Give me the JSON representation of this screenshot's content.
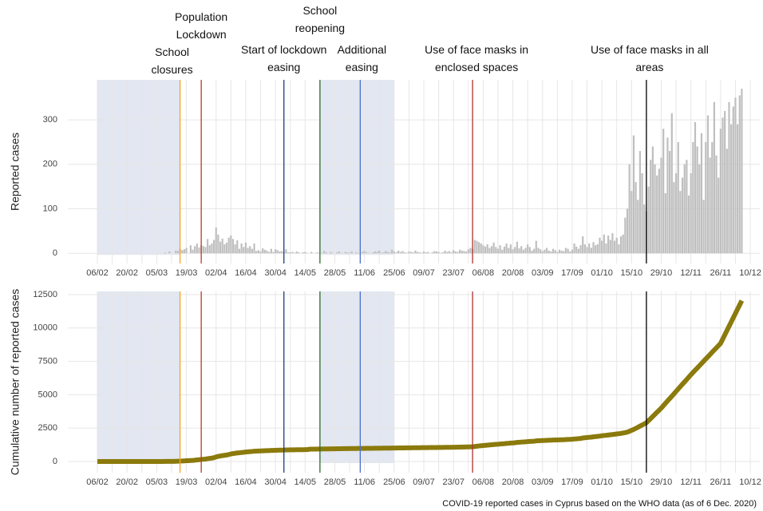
{
  "chart_data": [
    {
      "type": "bar",
      "y_label": "Reported cases",
      "color": "#bfbfbf",
      "grid": true,
      "categories": [
        "06/02",
        null,
        null,
        null,
        null,
        null,
        null,
        null,
        null,
        null,
        null,
        null,
        null,
        null,
        "20/02",
        null,
        null,
        null,
        null,
        null,
        null,
        null,
        null,
        null,
        null,
        null,
        null,
        null,
        "05/03",
        null,
        null,
        null,
        null,
        null,
        null,
        null,
        null,
        null,
        null,
        null,
        null,
        null,
        "19/03",
        null,
        null,
        null,
        null,
        null,
        null,
        null,
        null,
        null,
        null,
        null,
        null,
        null,
        "02/04",
        null,
        null,
        null,
        null,
        null,
        null,
        null,
        null,
        null,
        null,
        null,
        null,
        null,
        "16/04",
        null,
        null,
        null,
        null,
        null,
        null,
        null,
        null,
        null,
        null,
        null,
        null,
        null,
        "30/04",
        null,
        null,
        null,
        null,
        null,
        null,
        null,
        null,
        null,
        null,
        null,
        null,
        null,
        "14/05",
        null,
        null,
        null,
        null,
        null,
        null,
        null,
        null,
        null,
        null,
        null,
        null,
        null,
        "28/05",
        null,
        null,
        null,
        null,
        null,
        null,
        null,
        null,
        null,
        null,
        null,
        null,
        null,
        "11/06",
        null,
        null,
        null,
        null,
        null,
        null,
        null,
        null,
        null,
        null,
        null,
        null,
        null,
        "25/06",
        null,
        null,
        null,
        null,
        null,
        null,
        null,
        null,
        null,
        null,
        null,
        null,
        null,
        "09/07",
        null,
        null,
        null,
        null,
        null,
        null,
        null,
        null,
        null,
        null,
        null,
        null,
        null,
        "23/07",
        null,
        null,
        null,
        null,
        null,
        null,
        null,
        null,
        null,
        null,
        null,
        null,
        null,
        "06/08",
        null,
        null,
        null,
        null,
        null,
        null,
        null,
        null,
        null,
        null,
        null,
        null,
        null,
        "20/08",
        null,
        null,
        null,
        null,
        null,
        null,
        null,
        null,
        null,
        null,
        null,
        null,
        null,
        "03/09",
        null,
        null,
        null,
        null,
        null,
        null,
        null,
        null,
        null,
        null,
        null,
        null,
        null,
        "17/09",
        null,
        null,
        null,
        null,
        null,
        null,
        null,
        null,
        null,
        null,
        null,
        null,
        null,
        "01/10",
        null,
        null,
        null,
        null,
        null,
        null,
        null,
        null,
        null,
        null,
        null,
        null,
        null,
        "15/10",
        null,
        null,
        null,
        null,
        null,
        null,
        null,
        null,
        null,
        null,
        null,
        null,
        null,
        "29/10",
        null,
        null,
        null,
        null,
        null,
        null,
        null,
        null,
        null,
        null,
        null,
        null,
        null,
        "12/11",
        null,
        null,
        null,
        null,
        null,
        null,
        null,
        null,
        null,
        null,
        null,
        null,
        null,
        "26/11",
        null,
        null,
        null,
        null,
        null,
        null,
        null,
        null,
        null,
        null,
        null,
        null,
        null,
        "10/12"
      ],
      "values": [
        0,
        0,
        0,
        0,
        0,
        0,
        0,
        0,
        0,
        0,
        0,
        0,
        0,
        0,
        0,
        0,
        0,
        0,
        0,
        0,
        0,
        0,
        0,
        0,
        0,
        0,
        0,
        0,
        0,
        0,
        0,
        0,
        2,
        0,
        4,
        0,
        0,
        6,
        5,
        10,
        7,
        9,
        12,
        0,
        18,
        8,
        16,
        22,
        13,
        18,
        16,
        14,
        32,
        18,
        22,
        30,
        58,
        42,
        26,
        33,
        20,
        24,
        35,
        40,
        32,
        20,
        29,
        10,
        22,
        14,
        24,
        12,
        16,
        10,
        22,
        5,
        7,
        4,
        11,
        8,
        6,
        3,
        10,
        3,
        9,
        7,
        4,
        5,
        3,
        9,
        2,
        2,
        3,
        1,
        4,
        2,
        0,
        2,
        3,
        1,
        0,
        3,
        0,
        1,
        2,
        0,
        1,
        5,
        2,
        0,
        3,
        1,
        0,
        2,
        4,
        1,
        0,
        3,
        2,
        1,
        4,
        0,
        2,
        1,
        0,
        3,
        5,
        2,
        1,
        0,
        2,
        4,
        3,
        6,
        1,
        2,
        5,
        3,
        2,
        8,
        4,
        2,
        6,
        3,
        5,
        2,
        1,
        4,
        3,
        2,
        6,
        3,
        2,
        1,
        4,
        2,
        3,
        0,
        2,
        5,
        4,
        3,
        1,
        2,
        6,
        3,
        5,
        2,
        7,
        4,
        3,
        8,
        6,
        5,
        4,
        9,
        12,
        10,
        30,
        28,
        25,
        22,
        18,
        15,
        20,
        12,
        16,
        24,
        14,
        10,
        18,
        8,
        15,
        22,
        12,
        20,
        9,
        14,
        26,
        11,
        16,
        8,
        12,
        20,
        14,
        6,
        10,
        28,
        12,
        9,
        5,
        8,
        12,
        6,
        4,
        10,
        7,
        3,
        8,
        6,
        5,
        12,
        10,
        4,
        8,
        22,
        15,
        10,
        18,
        38,
        20,
        14,
        22,
        12,
        25,
        18,
        20,
        35,
        28,
        42,
        22,
        40,
        30,
        45,
        28,
        35,
        20,
        38,
        42,
        80,
        100,
        200,
        140,
        265,
        160,
        120,
        230,
        180,
        110,
        95,
        150,
        210,
        240,
        200,
        175,
        190,
        215,
        280,
        135,
        260,
        230,
        315,
        160,
        180,
        250,
        140,
        170,
        200,
        210,
        130,
        180,
        250,
        295,
        240,
        200,
        270,
        120,
        250,
        310,
        215,
        250,
        340,
        220,
        170,
        280,
        305,
        320,
        235,
        340,
        290,
        330,
        350,
        290,
        355,
        370,
        null,
        null,
        null,
        null
      ],
      "ylim": [
        -23,
        390
      ],
      "yticks": [
        0,
        100,
        200,
        300
      ],
      "shaded": [
        [
          0,
          39
        ],
        [
          105,
          140
        ]
      ],
      "events": [
        {
          "label": "School closures",
          "x": 39,
          "color": "#f5a623"
        },
        {
          "label": "Population Lockdown",
          "x": 49,
          "color": "#c0392b"
        },
        {
          "label": "Start of lockdown easing",
          "x": 88,
          "color": "#1f3a7a"
        },
        {
          "label": "School reopening",
          "x": 105,
          "color": "#2e6b2e"
        },
        {
          "label": "Additional easing",
          "x": 124,
          "color": "#4a6fd0"
        },
        {
          "label": "Use of face masks in enclosed spaces",
          "x": 177,
          "color": "#b03030"
        },
        {
          "label": "Use of face masks in all areas",
          "x": 259,
          "color": "#000000"
        }
      ]
    },
    {
      "type": "line",
      "y_label": "Cumulative number of reported cases",
      "color": "#8b7a0c",
      "grid": true,
      "categories": [
        "06/02",
        null,
        null,
        null,
        null,
        null,
        null,
        null,
        null,
        null,
        null,
        null,
        null,
        null,
        "20/02",
        null,
        null,
        null,
        null,
        null,
        null,
        null,
        null,
        null,
        null,
        null,
        null,
        null,
        "05/03",
        null,
        null,
        null,
        null,
        null,
        null,
        null,
        null,
        null,
        null,
        null,
        null,
        null,
        "19/03",
        null,
        null,
        null,
        null,
        null,
        null,
        null,
        null,
        null,
        null,
        null,
        null,
        null,
        "02/04",
        null,
        null,
        null,
        null,
        null,
        null,
        null,
        null,
        null,
        null,
        null,
        null,
        null,
        "16/04",
        null,
        null,
        null,
        null,
        null,
        null,
        null,
        null,
        null,
        null,
        null,
        null,
        null,
        "30/04",
        null,
        null,
        null,
        null,
        null,
        null,
        null,
        null,
        null,
        null,
        null,
        null,
        null,
        "14/05",
        null,
        null,
        null,
        null,
        null,
        null,
        null,
        null,
        null,
        null,
        null,
        null,
        null,
        "28/05",
        null,
        null,
        null,
        null,
        null,
        null,
        null,
        null,
        null,
        null,
        null,
        null,
        null,
        "11/06",
        null,
        null,
        null,
        null,
        null,
        null,
        null,
        null,
        null,
        null,
        null,
        null,
        null,
        "25/06",
        null,
        null,
        null,
        null,
        null,
        null,
        null,
        null,
        null,
        null,
        null,
        null,
        null,
        "09/07",
        null,
        null,
        null,
        null,
        null,
        null,
        null,
        null,
        null,
        null,
        null,
        null,
        null,
        "23/07",
        null,
        null,
        null,
        null,
        null,
        null,
        null,
        null,
        null,
        null,
        null,
        null,
        null,
        "06/08",
        null,
        null,
        null,
        null,
        null,
        null,
        null,
        null,
        null,
        null,
        null,
        null,
        null,
        "20/08",
        null,
        null,
        null,
        null,
        null,
        null,
        null,
        null,
        null,
        null,
        null,
        null,
        null,
        "03/09",
        null,
        null,
        null,
        null,
        null,
        null,
        null,
        null,
        null,
        null,
        null,
        null,
        null,
        "17/09",
        null,
        null,
        null,
        null,
        null,
        null,
        null,
        null,
        null,
        null,
        null,
        null,
        null,
        "01/10",
        null,
        null,
        null,
        null,
        null,
        null,
        null,
        null,
        null,
        null,
        null,
        null,
        null,
        "15/10",
        null,
        null,
        null,
        null,
        null,
        null,
        null,
        null,
        null,
        null,
        null,
        null,
        null,
        "29/10",
        null,
        null,
        null,
        null,
        null,
        null,
        null,
        null,
        null,
        null,
        null,
        null,
        null,
        "12/11",
        null,
        null,
        null,
        null,
        null,
        null,
        null,
        null,
        null,
        null,
        null,
        null,
        null,
        "26/11",
        null,
        null,
        null,
        null,
        null,
        null,
        null,
        null,
        null,
        null,
        null,
        null,
        null,
        "10/12"
      ],
      "values": [
        0,
        0,
        0,
        0,
        0,
        0,
        0,
        0,
        0,
        0,
        0,
        0,
        0,
        0,
        0,
        0,
        0,
        0,
        0,
        0,
        0,
        0,
        0,
        0,
        0,
        0,
        0,
        0,
        0,
        0,
        0,
        0,
        2,
        2,
        6,
        6,
        6,
        12,
        17,
        27,
        34,
        43,
        55,
        55,
        73,
        81,
        97,
        119,
        132,
        150,
        166,
        180,
        212,
        230,
        252,
        282,
        340,
        382,
        408,
        441,
        461,
        485,
        520,
        560,
        592,
        612,
        641,
        651,
        673,
        687,
        711,
        723,
        739,
        749,
        771,
        776,
        783,
        787,
        798,
        806,
        812,
        815,
        825,
        828,
        837,
        844,
        848,
        853,
        856,
        865,
        867,
        869,
        872,
        873,
        877,
        879,
        879,
        881,
        884,
        885,
        920,
        923,
        925,
        927,
        930,
        932,
        934,
        938,
        941,
        943,
        946,
        948,
        950,
        952,
        955,
        957,
        959,
        962,
        964,
        966,
        969,
        970,
        972,
        974,
        975,
        977,
        980,
        982,
        984,
        985,
        987,
        989,
        991,
        993,
        995,
        997,
        999,
        1001,
        1003,
        1006,
        1008,
        1010,
        1012,
        1014,
        1016,
        1018,
        1020,
        1022,
        1024,
        1026,
        1028,
        1030,
        1032,
        1034,
        1036,
        1038,
        1040,
        1042,
        1044,
        1046,
        1048,
        1050,
        1052,
        1054,
        1056,
        1058,
        1060,
        1063,
        1066,
        1069,
        1072,
        1076,
        1080,
        1084,
        1088,
        1092,
        1098,
        1104,
        1120,
        1140,
        1160,
        1180,
        1195,
        1210,
        1225,
        1238,
        1252,
        1270,
        1284,
        1294,
        1310,
        1318,
        1332,
        1350,
        1362,
        1380,
        1390,
        1404,
        1428,
        1438,
        1452,
        1460,
        1472,
        1490,
        1502,
        1508,
        1517,
        1543,
        1554,
        1562,
        1567,
        1574,
        1585,
        1590,
        1594,
        1603,
        1610,
        1613,
        1620,
        1626,
        1631,
        1642,
        1652,
        1656,
        1663,
        1684,
        1698,
        1707,
        1724,
        1760,
        1778,
        1791,
        1811,
        1822,
        1845,
        1862,
        1880,
        1900,
        1925,
        1945,
        1960,
        1980,
        2000,
        2020,
        2040,
        2060,
        2080,
        2100,
        2130,
        2160,
        2200,
        2260,
        2330,
        2400,
        2480,
        2560,
        2650,
        2730,
        2810,
        2900,
        3060,
        3210,
        3370,
        3530,
        3690,
        3840,
        4000,
        4180,
        4360,
        4540,
        4710,
        4890,
        5070,
        5250,
        5430,
        5610,
        5790,
        5960,
        6140,
        6320,
        6500,
        6670,
        6840,
        7000,
        7170,
        7340,
        7510,
        7680,
        7840,
        8010,
        8180,
        8350,
        8510,
        8680,
        8850,
        9170,
        9490,
        9810,
        10130,
        10450,
        10770,
        11090,
        11410,
        11730,
        12050,
        null,
        null,
        null,
        null
      ],
      "ylim": [
        -840,
        12740
      ],
      "yticks": [
        0,
        2500,
        5000,
        7500,
        10000,
        12500
      ]
    }
  ],
  "caption": "COVID-19  reported cases in Cyprus based on the WHO data (as of 6 Dec. 2020)"
}
